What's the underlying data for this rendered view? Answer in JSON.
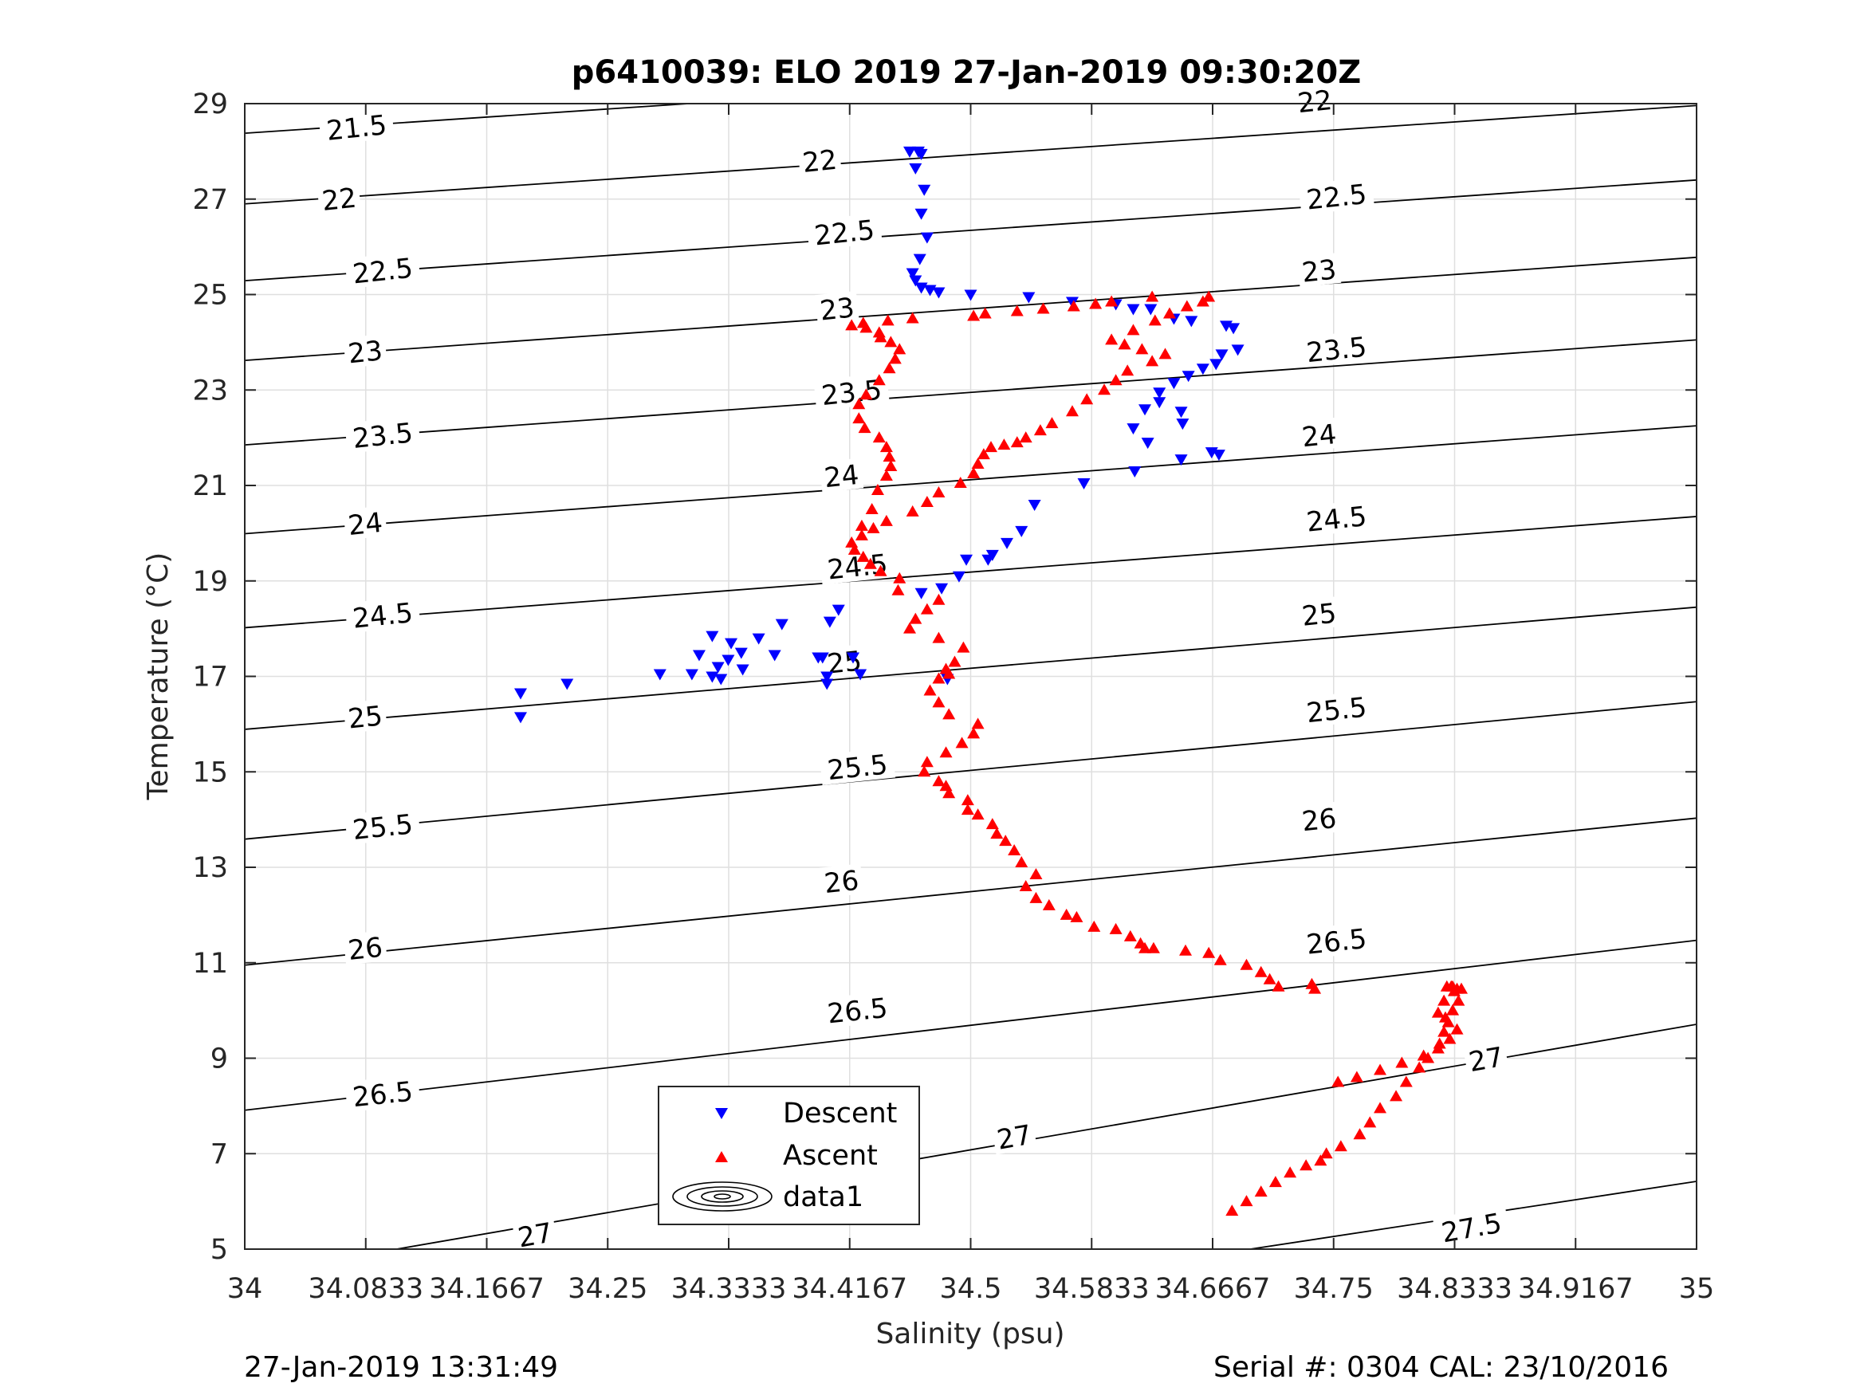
{
  "chart_data": {
    "type": "scatter",
    "title": "p6410039: ELO 2019 27-Jan-2019 09:30:20Z",
    "xlabel": "Salinity (psu)",
    "ylabel": "Temperature (°C)",
    "xlim": [
      34,
      35
    ],
    "ylim": [
      5,
      29
    ],
    "xticks": [
      "34",
      "34.0833",
      "34.1667",
      "34.25",
      "34.3333",
      "34.4167",
      "34.5",
      "34.5833",
      "34.6667",
      "34.75",
      "34.8333",
      "34.9167",
      "35"
    ],
    "yticks": [
      "5",
      "7",
      "9",
      "11",
      "13",
      "15",
      "17",
      "19",
      "21",
      "23",
      "25",
      "27",
      "29"
    ],
    "grid": true,
    "legend": {
      "placement": "lower-left",
      "entries": [
        {
          "label": "Descent",
          "marker": "triangle-down",
          "color": "#0000ff"
        },
        {
          "label": "Ascent",
          "marker": "triangle-up",
          "color": "#ff0000"
        },
        {
          "label": "data1",
          "marker": "contour",
          "color": "#000000"
        }
      ]
    },
    "density_contours": [
      {
        "sigma": 21.5,
        "t_at_s34": 28.38,
        "t_at_s35": 30.41
      },
      {
        "sigma": 22,
        "t_at_s34": 26.9,
        "t_at_s35": 28.96
      },
      {
        "sigma": 22.5,
        "t_at_s34": 25.29,
        "t_at_s35": 27.4
      },
      {
        "sigma": 23,
        "t_at_s34": 23.62,
        "t_at_s35": 25.78
      },
      {
        "sigma": 23.5,
        "t_at_s34": 21.85,
        "t_at_s35": 24.05
      },
      {
        "sigma": 24,
        "t_at_s34": 19.99,
        "t_at_s35": 22.25
      },
      {
        "sigma": 24.5,
        "t_at_s34": 18.02,
        "t_at_s35": 20.35
      },
      {
        "sigma": 25,
        "t_at_s34": 15.89,
        "t_at_s35": 18.45
      },
      {
        "sigma": 25.5,
        "t_at_s34": 13.59,
        "t_at_s35": 16.47
      },
      {
        "sigma": 26,
        "t_at_s34": 10.95,
        "t_at_s35": 14.03
      },
      {
        "sigma": 26.5,
        "t_at_s34": 7.91,
        "t_at_s35": 11.47
      },
      {
        "sigma": 27,
        "t_at_s34": 4.45,
        "t_at_s35": 9.71
      },
      {
        "sigma": 27.5,
        "t_at_s34": 1.8,
        "t_at_s35": 6.42
      }
    ],
    "contour_labels": [
      {
        "text": "21.5",
        "s": 34.077,
        "t": 28.5,
        "angle": -6
      },
      {
        "text": "22",
        "s": 34.065,
        "t": 27.0,
        "angle": -6
      },
      {
        "text": "22.5",
        "s": 34.095,
        "t": 25.5,
        "angle": -6
      },
      {
        "text": "23",
        "s": 34.083,
        "t": 23.8,
        "angle": -6
      },
      {
        "text": "23.5",
        "s": 34.095,
        "t": 22.05,
        "angle": -6
      },
      {
        "text": "24",
        "s": 34.083,
        "t": 20.2,
        "angle": -6
      },
      {
        "text": "24.5",
        "s": 34.095,
        "t": 18.28,
        "angle": -6
      },
      {
        "text": "25",
        "s": 34.083,
        "t": 16.15,
        "angle": -6
      },
      {
        "text": "25.5",
        "s": 34.095,
        "t": 13.85,
        "angle": -6
      },
      {
        "text": "26",
        "s": 34.083,
        "t": 11.3,
        "angle": -6
      },
      {
        "text": "26.5",
        "s": 34.095,
        "t": 8.25,
        "angle": -6
      },
      {
        "text": "27",
        "s": 34.2,
        "t": 5.3,
        "angle": -10
      },
      {
        "text": "22",
        "s": 34.396,
        "t": 27.8,
        "angle": -6
      },
      {
        "text": "22.5",
        "s": 34.413,
        "t": 26.3,
        "angle": -6
      },
      {
        "text": "23",
        "s": 34.408,
        "t": 24.7,
        "angle": -6
      },
      {
        "text": "23.5",
        "s": 34.418,
        "t": 22.95,
        "angle": -6
      },
      {
        "text": "24",
        "s": 34.411,
        "t": 21.2,
        "angle": -6
      },
      {
        "text": "24.5",
        "s": 34.422,
        "t": 19.3,
        "angle": -6
      },
      {
        "text": "25",
        "s": 34.413,
        "t": 17.3,
        "angle": -6
      },
      {
        "text": "25.5",
        "s": 34.422,
        "t": 15.1,
        "angle": -6
      },
      {
        "text": "26",
        "s": 34.411,
        "t": 12.7,
        "angle": -6
      },
      {
        "text": "26.5",
        "s": 34.422,
        "t": 10.0,
        "angle": -6
      },
      {
        "text": "27",
        "s": 34.53,
        "t": 7.35,
        "angle": -10
      },
      {
        "text": "22",
        "s": 34.737,
        "t": 29.05,
        "angle": -6
      },
      {
        "text": "22.5",
        "s": 34.752,
        "t": 27.05,
        "angle": -6
      },
      {
        "text": "23",
        "s": 34.74,
        "t": 25.5,
        "angle": -6
      },
      {
        "text": "23.5",
        "s": 34.752,
        "t": 23.85,
        "angle": -6
      },
      {
        "text": "24",
        "s": 34.74,
        "t": 22.05,
        "angle": -6
      },
      {
        "text": "24.5",
        "s": 34.752,
        "t": 20.3,
        "angle": -6
      },
      {
        "text": "25",
        "s": 34.74,
        "t": 18.3,
        "angle": -6
      },
      {
        "text": "25.5",
        "s": 34.752,
        "t": 16.3,
        "angle": -6
      },
      {
        "text": "26",
        "s": 34.74,
        "t": 14.0,
        "angle": -6
      },
      {
        "text": "26.5",
        "s": 34.752,
        "t": 11.45,
        "angle": -6
      },
      {
        "text": "27",
        "s": 34.855,
        "t": 8.98,
        "angle": -10
      },
      {
        "text": "27.5",
        "s": 34.845,
        "t": 5.45,
        "angle": -10
      }
    ],
    "series": [
      {
        "name": "Descent",
        "marker": "triangle-down",
        "color": "#0000ff",
        "x": [
          34.458,
          34.464,
          34.466,
          34.462,
          34.468,
          34.466,
          34.47,
          34.465,
          34.46,
          34.462,
          34.466,
          34.472,
          34.478,
          34.5,
          34.54,
          34.57,
          34.6,
          34.612,
          34.624,
          34.64,
          34.652,
          34.676,
          34.681,
          34.684,
          34.673,
          34.669,
          34.66,
          34.65,
          34.64,
          34.63,
          34.62,
          34.612,
          34.63,
          34.645,
          34.646,
          34.622,
          34.645,
          34.666,
          34.671,
          34.578,
          34.613,
          34.544,
          34.535,
          34.525,
          34.515,
          34.512,
          34.497,
          34.492,
          34.48,
          34.466,
          34.409,
          34.403,
          34.398,
          34.37,
          34.354,
          34.342,
          34.335,
          34.322,
          34.313,
          34.333,
          34.326,
          34.322,
          34.328,
          34.308,
          34.286,
          34.343,
          34.365,
          34.395,
          34.401,
          34.401,
          34.419,
          34.424,
          34.19,
          34.19,
          34.222,
          34.484
        ],
        "y": [
          28.0,
          28.0,
          27.95,
          27.65,
          27.2,
          26.7,
          26.2,
          25.75,
          25.45,
          25.3,
          25.15,
          25.1,
          25.05,
          25.0,
          24.95,
          24.85,
          24.8,
          24.7,
          24.7,
          24.5,
          24.45,
          24.35,
          24.3,
          23.85,
          23.75,
          23.55,
          23.45,
          23.3,
          23.15,
          22.95,
          22.6,
          22.2,
          22.75,
          22.55,
          22.3,
          21.9,
          21.55,
          21.7,
          21.65,
          21.05,
          21.3,
          20.6,
          20.05,
          19.8,
          19.55,
          19.45,
          19.45,
          19.1,
          18.85,
          18.75,
          18.4,
          18.15,
          17.4,
          18.1,
          17.8,
          17.5,
          17.7,
          17.85,
          17.45,
          17.35,
          17.2,
          17.0,
          16.95,
          17.05,
          17.05,
          17.15,
          17.45,
          17.4,
          17.0,
          16.85,
          17.4,
          17.05,
          16.65,
          16.15,
          16.85,
          16.95
        ]
      },
      {
        "name": "Ascent",
        "marker": "triangle-up",
        "color": "#ff0000",
        "x": [
          34.68,
          34.69,
          34.7,
          34.71,
          34.72,
          34.731,
          34.741,
          34.745,
          34.755,
          34.768,
          34.775,
          34.782,
          34.793,
          34.8,
          34.809,
          34.815,
          34.823,
          34.826,
          34.827,
          34.832,
          34.836,
          34.838,
          34.832,
          34.828,
          34.831,
          34.835,
          34.833,
          34.826,
          34.822,
          34.829,
          34.835,
          34.83,
          34.822,
          34.812,
          34.797,
          34.782,
          34.766,
          34.753,
          34.737,
          34.735,
          34.712,
          34.706,
          34.7,
          34.69,
          34.672,
          34.664,
          34.648,
          34.626,
          34.62,
          34.617,
          34.61,
          34.6,
          34.585,
          34.573,
          34.566,
          34.554,
          34.545,
          34.538,
          34.545,
          34.535,
          34.53,
          34.524,
          34.518,
          34.515,
          34.505,
          34.498,
          34.498,
          34.485,
          34.483,
          34.478,
          34.468,
          34.47,
          34.483,
          34.494,
          34.502,
          34.505,
          34.485,
          34.478,
          34.472,
          34.478,
          34.485,
          34.483,
          34.489,
          34.495,
          34.478,
          34.458,
          34.462,
          34.47,
          34.478,
          34.45,
          34.451,
          34.438,
          34.431,
          34.426,
          34.42,
          34.418,
          34.425,
          34.433,
          34.442,
          34.46,
          34.47,
          34.478,
          34.493,
          34.502,
          34.505,
          34.509,
          34.514,
          34.523,
          34.532,
          34.538,
          34.548,
          34.556,
          34.57,
          34.58,
          34.592,
          34.6,
          34.608,
          34.625,
          34.634,
          34.618,
          34.606,
          34.597,
          34.612,
          34.627,
          34.637,
          34.649,
          34.66,
          34.664,
          34.625,
          34.597,
          34.586,
          34.571,
          34.55,
          34.532,
          34.51,
          34.502,
          34.46,
          34.443,
          34.426,
          34.418,
          34.428,
          34.437,
          34.438,
          34.445,
          34.451,
          34.448,
          34.444,
          34.437,
          34.428,
          34.423,
          34.423,
          34.427,
          34.437,
          34.442,
          34.444,
          34.445,
          34.442,
          34.436,
          34.432,
          34.425
        ],
        "y": [
          5.8,
          6.0,
          6.2,
          6.4,
          6.6,
          6.75,
          6.85,
          7.0,
          7.15,
          7.4,
          7.65,
          7.95,
          8.2,
          8.5,
          8.8,
          9.0,
          9.3,
          9.55,
          9.85,
          10.0,
          10.2,
          10.45,
          10.5,
          10.5,
          10.5,
          10.45,
          10.4,
          10.2,
          9.95,
          9.75,
          9.6,
          9.4,
          9.2,
          9.05,
          8.9,
          8.75,
          8.6,
          8.5,
          10.45,
          10.55,
          10.5,
          10.65,
          10.8,
          10.95,
          11.05,
          11.2,
          11.25,
          11.3,
          11.3,
          11.4,
          11.55,
          11.7,
          11.75,
          11.95,
          12.0,
          12.2,
          12.35,
          12.6,
          12.85,
          13.1,
          13.35,
          13.55,
          13.7,
          13.9,
          14.1,
          14.2,
          14.4,
          14.55,
          14.7,
          14.8,
          15.0,
          15.2,
          15.4,
          15.6,
          15.8,
          16.0,
          16.2,
          16.45,
          16.7,
          16.95,
          17.05,
          17.15,
          17.3,
          17.6,
          17.8,
          18.0,
          18.2,
          18.4,
          18.6,
          18.8,
          19.05,
          19.2,
          19.35,
          19.5,
          19.65,
          19.8,
          19.95,
          20.1,
          20.25,
          20.45,
          20.65,
          20.85,
          21.05,
          21.25,
          21.45,
          21.65,
          21.8,
          21.85,
          21.9,
          22.0,
          22.15,
          22.3,
          22.55,
          22.8,
          23.0,
          23.2,
          23.4,
          23.6,
          23.75,
          23.85,
          23.95,
          24.05,
          24.25,
          24.45,
          24.6,
          24.75,
          24.85,
          24.95,
          24.95,
          24.85,
          24.8,
          24.75,
          24.7,
          24.65,
          24.6,
          24.55,
          24.5,
          24.45,
          24.4,
          24.35,
          24.3,
          24.2,
          24.1,
          24.0,
          23.85,
          23.65,
          23.45,
          23.2,
          22.9,
          22.7,
          22.4,
          22.2,
          22.0,
          21.8,
          21.6,
          21.4,
          21.2,
          20.9,
          20.5,
          20.15
        ]
      }
    ]
  },
  "footer": {
    "timestamp": "27-Jan-2019 13:31:49",
    "serial": "Serial #: 0304  CAL: 23/10/2016"
  }
}
